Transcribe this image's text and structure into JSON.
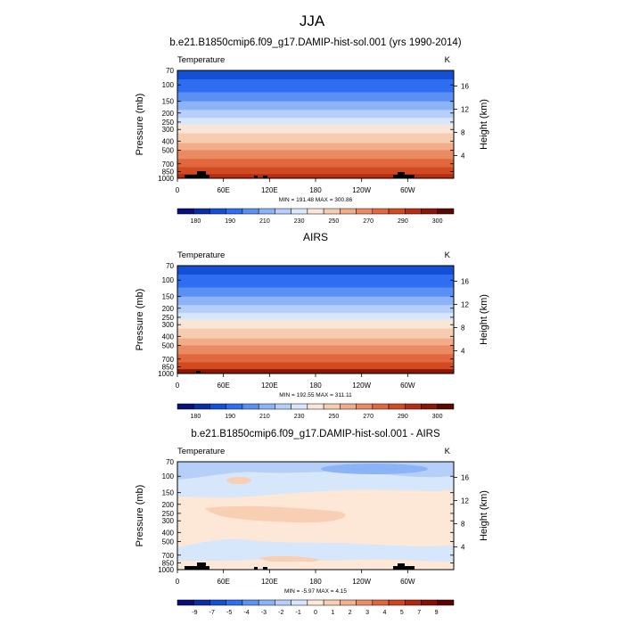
{
  "figure": {
    "title": "JJA"
  },
  "colors": {
    "model_obs_scale": [
      "#08107a",
      "#0a2ea6",
      "#1450d6",
      "#2f6ef0",
      "#5a90f4",
      "#8cb2f7",
      "#b6cffa",
      "#d8e6fb",
      "#f8e6d8",
      "#f7cdb1",
      "#f2ad88",
      "#ea8a62",
      "#e1673e",
      "#d24a22",
      "#b52d12",
      "#8a1606",
      "#5a0800"
    ],
    "diff_scale": [
      "#080e78",
      "#0b2da6",
      "#1450d5",
      "#2f6ef0",
      "#5d91f4",
      "#8db3f7",
      "#b6cff9",
      "#d6e6fb",
      "#fde7d6",
      "#f8cfb2",
      "#f4b08d",
      "#eb8c64",
      "#e06640",
      "#cf4521",
      "#b2280f",
      "#880f04",
      "#5a0300"
    ],
    "terrain": "#000000"
  },
  "chart_data": [
    {
      "type": "heatmap",
      "title": "b.e21.B1850cmip6.f09_g17.DAMIP-hist-sol.001 (yrs 1990-2014)",
      "left_label": "Temperature",
      "right_label": "K",
      "ylabel": "Pressure (mb)",
      "y2label": "Height (km)",
      "x_ticks": [
        "0",
        "60E",
        "120E",
        "180",
        "120W",
        "60W"
      ],
      "y_ticks": [
        "70",
        "100",
        "150",
        "200",
        "250",
        "300",
        "400",
        "500",
        "700",
        "850",
        "1000"
      ],
      "y2_ticks": [
        "16",
        "12",
        "8",
        "4"
      ],
      "y_scale": "log",
      "stats": "MIN = 191.48  MAX = 300.86",
      "colorbar_labels": [
        "180",
        "190",
        "210",
        "230",
        "250",
        "270",
        "290",
        "300"
      ],
      "min": 191.48,
      "max": 300.86
    },
    {
      "type": "heatmap",
      "title": "AIRS",
      "left_label": "Temperature",
      "right_label": "K",
      "ylabel": "Pressure (mb)",
      "y2label": "Height (km)",
      "x_ticks": [
        "0",
        "60E",
        "120E",
        "180",
        "120W",
        "60W"
      ],
      "y_ticks": [
        "70",
        "100",
        "150",
        "200",
        "250",
        "300",
        "400",
        "500",
        "700",
        "850",
        "1000"
      ],
      "y2_ticks": [
        "16",
        "12",
        "8",
        "4"
      ],
      "y_scale": "log",
      "stats": "MIN = 192.55  MAX = 311.11",
      "colorbar_labels": [
        "180",
        "190",
        "210",
        "230",
        "250",
        "270",
        "290",
        "300"
      ],
      "min": 192.55,
      "max": 311.11
    },
    {
      "type": "heatmap",
      "title": "b.e21.B1850cmip6.f09_g17.DAMIP-hist-sol.001 - AIRS",
      "left_label": "Temperature",
      "right_label": "K",
      "ylabel": "Pressure (mb)",
      "y2label": "Height (km)",
      "x_ticks": [
        "0",
        "60E",
        "120E",
        "180",
        "120W",
        "60W"
      ],
      "y_ticks": [
        "70",
        "100",
        "150",
        "200",
        "250",
        "300",
        "400",
        "500",
        "700",
        "850",
        "1000"
      ],
      "y2_ticks": [
        "16",
        "12",
        "8",
        "4"
      ],
      "y_scale": "log",
      "stats": "MIN =  -5.97  MAX =  4.15",
      "colorbar_labels": [
        "-9",
        "-7",
        "-5",
        "-4",
        "-3",
        "-2",
        "-1",
        "0",
        "1",
        "2",
        "3",
        "4",
        "5",
        "7",
        "9"
      ],
      "min": -5.97,
      "max": 4.15
    }
  ]
}
